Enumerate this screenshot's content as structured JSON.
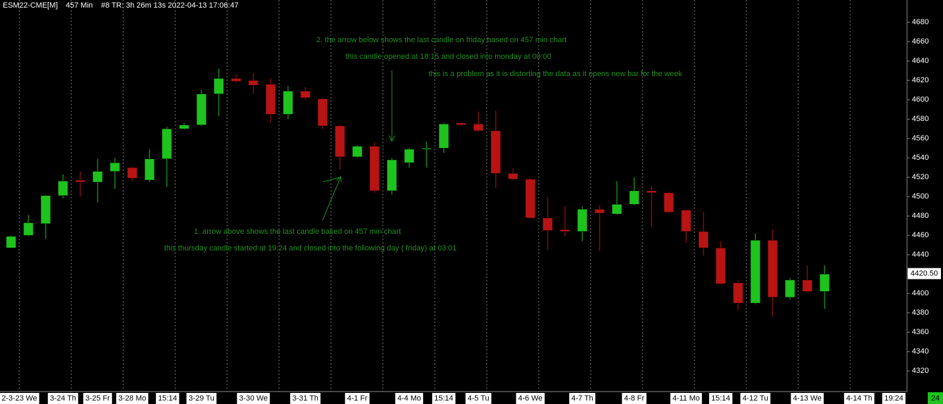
{
  "header": {
    "symbol": "ESM22-CME[M]",
    "interval": "457 Min",
    "info": "#8 TR: 3h 26m 13s 2022-04-13 17:06:47"
  },
  "chart_data": {
    "type": "candlestick",
    "up_color": "#1ec31e",
    "down_color": "#b81414",
    "ylim": [
      4303,
      4703
    ],
    "yticks": [
      4320,
      4340,
      4360,
      4380,
      4400,
      4420,
      4440,
      4460,
      4480,
      4500,
      4520,
      4540,
      4560,
      4580,
      4600,
      4620,
      4640,
      4660,
      4680
    ],
    "last_price": {
      "value": 4420.5,
      "label": "4420.50"
    },
    "x_labels": [
      "2-3-23 We",
      "3-24 Th",
      "3-25 Fr",
      "3-28 Mo",
      "15:14",
      "3-29 Tu",
      "3-30 We",
      "3-31 Th",
      "4-1 Fr",
      "4-4 Mo",
      "15:14",
      "4-5 Tu",
      "4-6 We",
      "4-7 Th",
      "4-8 Fr",
      "4-11 Mo",
      "15:14",
      "4-12 Tu",
      "4-13 We",
      "4-14 Th",
      "19:24"
    ],
    "corner_label": "24",
    "series": [
      {
        "open": [
          4447,
          4460,
          4472,
          4501,
          4517,
          4515,
          4526,
          4530,
          4517,
          4539,
          4570,
          4574,
          4606,
          4622,
          4620,
          4616,
          4585,
          4609,
          4601,
          4573,
          4541,
          4552,
          4506,
          4535,
          4549,
          4550,
          4576,
          4575,
          4568,
          4524,
          4518,
          4478,
          4466,
          4464,
          4487,
          4482,
          4492,
          4506,
          4504,
          4486,
          4464,
          4447,
          4411,
          4390,
          4455,
          4396,
          4414,
          4402
        ],
        "high": [
          4460,
          4481,
          4502,
          4523,
          4526,
          4539,
          4540,
          4531,
          4549,
          4572,
          4576,
          4610,
          4632,
          4626,
          4628,
          4622,
          4614,
          4613,
          4602,
          4574,
          4553,
          4556,
          4540,
          4550,
          4557,
          4576,
          4577,
          4588,
          4589,
          4529,
          4519,
          4499,
          4490,
          4490,
          4491,
          4516,
          4520,
          4511,
          4505,
          4487,
          4484,
          4454,
          4414,
          4462,
          4466,
          4416,
          4429,
          4429
        ],
        "low": [
          4447,
          4459,
          4456,
          4498,
          4500,
          4494,
          4508,
          4516,
          4515,
          4510,
          4569,
          4573,
          4583,
          4618,
          4606,
          4576,
          4580,
          4600,
          4570,
          4528,
          4540,
          4504,
          4502,
          4530,
          4530,
          4545,
          4573,
          4567,
          4509,
          4517,
          4478,
          4445,
          4459,
          4454,
          4444,
          4481,
          4491,
          4469,
          4483,
          4452,
          4439,
          4409,
          4383,
          4389,
          4376,
          4394,
          4401,
          4384
        ],
        "close": [
          4459,
          4473,
          4501,
          4516,
          4515,
          4526,
          4535,
          4519,
          4539,
          4570,
          4574,
          4606,
          4622,
          4619,
          4615,
          4585,
          4609,
          4602,
          4573,
          4541,
          4552,
          4506,
          4538,
          4549,
          4550,
          4575,
          4574,
          4568,
          4524,
          4518,
          4478,
          4465,
          4464,
          4487,
          4483,
          4492,
          4506,
          4504,
          4484,
          4464,
          4447,
          4410,
          4390,
          4455,
          4396,
          4414,
          4402,
          4420
        ]
      }
    ]
  },
  "annotations": {
    "note2_line1": "2.       the arrow below shows the last candle on friday based on 457 min chart",
    "note2_line2": "this candle opened at 18:15 and closed into monday at 00:00",
    "note2_line3": "this is a problem as it is distorting the data as it opens new bar for the week",
    "note1_line1": "1.      arrow above shows the last candle based on 457 min chart",
    "note1_line2": "this thursday candle started at 19:24 and closed into the following day ( friday) at 03:01"
  }
}
